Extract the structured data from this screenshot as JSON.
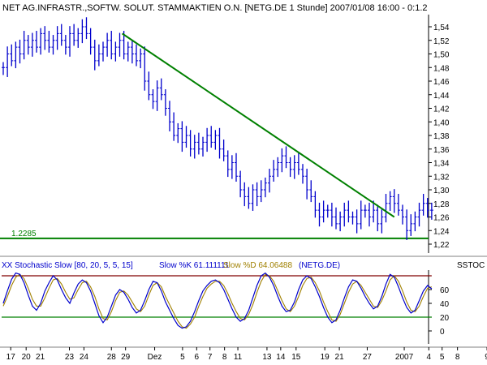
{
  "title_bar": "NET AG.INFRASTR.,SOFTW. SOLUT. STAMMAKTIEN O.N. [NETG.DE 1 Stunde] 2007/01/08 16:00 - 0:1.2",
  "colors": {
    "price": "#0000cc",
    "trendline": "#008000",
    "k_line": "#0000cc",
    "d_line": "#a08000",
    "upper_band": "#800000",
    "lower_band": "#008000"
  },
  "chart_data": [
    {
      "type": "line",
      "title": "NET AG.INFRASTR.,SOFTW. SOLUT. STAMMAKTIEN O.N. [NETG.DE 1 Stunde] 2007/01/08 16:00 - 0:1.2",
      "y_ticks": [
        "1,54",
        "1,52",
        "1,50",
        "1,48",
        "1,46",
        "1,44",
        "1,42",
        "1,40",
        "1,38",
        "1,36",
        "1,34",
        "1,32",
        "1,30",
        "1,28",
        "1,26",
        "1,24",
        "1,22"
      ],
      "ylim": [
        1.215,
        1.555
      ],
      "support_line": {
        "value": 1.2285,
        "label": "1.2285"
      },
      "trendline": {
        "from": {
          "x": 28.6,
          "y": 1.53
        },
        "to": {
          "x": 94.0,
          "y": 1.26
        }
      },
      "x": [
        0,
        1,
        2,
        3,
        4,
        5,
        6,
        7,
        8,
        9,
        10,
        11,
        12,
        13,
        14,
        15,
        16,
        17,
        18,
        19,
        20,
        21,
        22,
        23,
        24,
        25,
        26,
        27,
        28,
        29,
        30,
        31,
        32,
        33,
        34,
        35,
        36,
        37,
        38,
        39,
        40,
        41,
        42,
        43,
        44,
        45,
        46,
        47,
        48,
        49,
        50,
        51,
        52,
        53,
        54,
        55,
        56,
        57,
        58,
        59,
        60,
        61,
        62,
        63,
        64,
        65,
        66,
        67,
        68,
        69,
        70,
        71,
        72,
        73,
        74,
        75,
        76,
        77,
        78,
        79,
        80,
        81,
        82,
        83,
        84,
        85,
        86,
        87,
        88,
        89,
        90,
        91,
        92,
        93,
        94,
        95,
        96,
        97,
        98,
        99,
        100,
        101,
        102,
        103
      ],
      "values": [
        1.48,
        1.5,
        1.49,
        1.51,
        1.5,
        1.52,
        1.51,
        1.52,
        1.51,
        1.53,
        1.52,
        1.51,
        1.52,
        1.53,
        1.52,
        1.51,
        1.53,
        1.52,
        1.53,
        1.54,
        1.53,
        1.51,
        1.49,
        1.5,
        1.51,
        1.52,
        1.5,
        1.51,
        1.52,
        1.5,
        1.51,
        1.5,
        1.49,
        1.5,
        1.46,
        1.44,
        1.43,
        1.45,
        1.44,
        1.42,
        1.4,
        1.38,
        1.39,
        1.37,
        1.38,
        1.36,
        1.37,
        1.36,
        1.37,
        1.38,
        1.37,
        1.38,
        1.36,
        1.35,
        1.33,
        1.34,
        1.32,
        1.3,
        1.29,
        1.28,
        1.3,
        1.29,
        1.3,
        1.31,
        1.32,
        1.33,
        1.34,
        1.35,
        1.34,
        1.33,
        1.34,
        1.33,
        1.32,
        1.3,
        1.29,
        1.27,
        1.26,
        1.27,
        1.27,
        1.26,
        1.25,
        1.26,
        1.27,
        1.26,
        1.26,
        1.25,
        1.27,
        1.27,
        1.26,
        1.27,
        1.25,
        1.26,
        1.28,
        1.29,
        1.28,
        1.27,
        1.26,
        1.24,
        1.25,
        1.26,
        1.27,
        1.28,
        1.27,
        1.27
      ],
      "x_tick_labels": [
        {
          "x": 1.8,
          "label": "17"
        },
        {
          "x": 5.5,
          "label": "20"
        },
        {
          "x": 8.9,
          "label": "21"
        },
        {
          "x": 15.9,
          "label": "23"
        },
        {
          "x": 19.4,
          "label": "24"
        },
        {
          "x": 26.0,
          "label": "28"
        },
        {
          "x": 29.4,
          "label": "29"
        },
        {
          "x": 36.4,
          "label": "Dez"
        },
        {
          "x": 43.1,
          "label": "5"
        },
        {
          "x": 46.5,
          "label": "6"
        },
        {
          "x": 49.7,
          "label": "7"
        },
        {
          "x": 53.2,
          "label": "8"
        },
        {
          "x": 56.4,
          "label": "11"
        },
        {
          "x": 63.4,
          "label": "13"
        },
        {
          "x": 66.7,
          "label": "14"
        },
        {
          "x": 70.4,
          "label": "15"
        },
        {
          "x": 77.3,
          "label": "19"
        },
        {
          "x": 80.8,
          "label": "21"
        },
        {
          "x": 87.5,
          "label": "27"
        },
        {
          "x": 96.4,
          "label": "2007"
        },
        {
          "x": 102.3,
          "label": "4"
        },
        {
          "x": 105.5,
          "label": "5"
        },
        {
          "x": 109.2,
          "label": "8"
        },
        {
          "x": 116.3,
          "label": "9"
        }
      ]
    },
    {
      "type": "line",
      "title": "XX Stochastic Slow [80, 20, 5, 5, 15] Slow %K 61.111111 Slow %D 64.06488 (NETG.DE)",
      "title_parts": [
        "XX Stochastic Slow [80, 20, 5, 5, 15]",
        "Slow %K 61.111111",
        "Slow %D 64.06488",
        "(NETG.DE)"
      ],
      "axis_label": "SSTOC",
      "y_ticks": [
        "60",
        "40",
        "20",
        "0"
      ],
      "ylim": [
        -12,
        90
      ],
      "bands": {
        "upper": 80,
        "lower": 20
      },
      "series": [
        {
          "name": "Slow %K",
          "values": [
            40,
            58,
            75,
            84,
            82,
            70,
            52,
            36,
            30,
            40,
            58,
            70,
            80,
            74,
            60,
            48,
            40,
            55,
            68,
            74,
            70,
            58,
            40,
            22,
            12,
            20,
            36,
            52,
            60,
            56,
            46,
            34,
            26,
            30,
            44,
            60,
            72,
            70,
            58,
            42,
            30,
            18,
            8,
            4,
            6,
            14,
            28,
            44,
            58,
            66,
            72,
            74,
            70,
            60,
            46,
            32,
            20,
            14,
            18,
            30,
            48,
            66,
            80,
            84,
            78,
            66,
            50,
            36,
            28,
            30,
            42,
            60,
            74,
            80,
            76,
            64,
            50,
            34,
            20,
            12,
            16,
            30,
            48,
            64,
            74,
            72,
            62,
            50,
            40,
            32,
            36,
            50,
            68,
            82,
            78,
            64,
            48,
            34,
            26,
            30,
            44,
            58,
            66,
            61
          ]
        },
        {
          "name": "Slow %D",
          "values": [
            36,
            50,
            66,
            78,
            82,
            76,
            62,
            46,
            36,
            36,
            48,
            62,
            74,
            76,
            68,
            56,
            46,
            48,
            60,
            70,
            72,
            64,
            50,
            32,
            18,
            16,
            28,
            44,
            56,
            58,
            52,
            42,
            32,
            28,
            36,
            52,
            66,
            70,
            64,
            50,
            38,
            26,
            14,
            6,
            4,
            10,
            20,
            36,
            50,
            62,
            68,
            72,
            72,
            66,
            54,
            40,
            28,
            18,
            16,
            24,
            38,
            56,
            72,
            82,
            80,
            72,
            58,
            44,
            32,
            28,
            36,
            50,
            66,
            76,
            78,
            70,
            58,
            42,
            28,
            16,
            14,
            24,
            40,
            56,
            68,
            72,
            66,
            56,
            46,
            36,
            34,
            44,
            58,
            74,
            80,
            72,
            58,
            42,
            30,
            28,
            36,
            50,
            62,
            64
          ]
        }
      ]
    }
  ]
}
